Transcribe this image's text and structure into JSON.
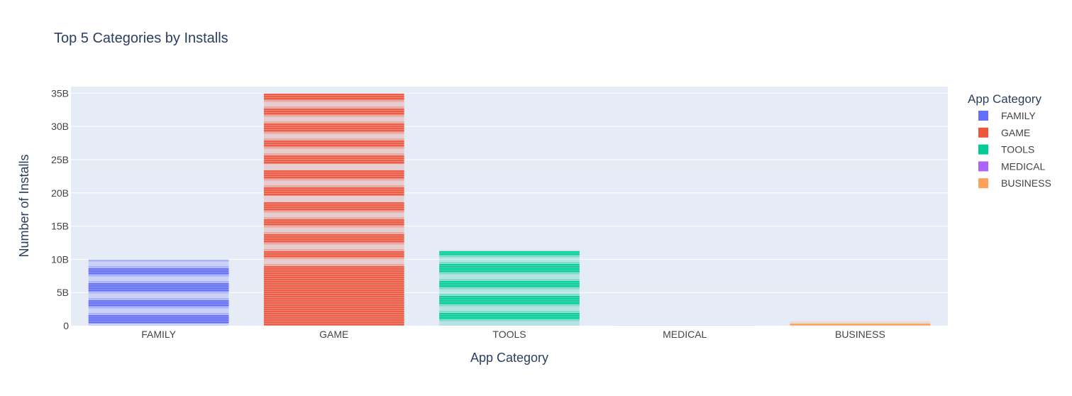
{
  "chart_data": {
    "type": "bar",
    "title": "Top 5 Categories by Installs",
    "xlabel": "App Category",
    "ylabel": "Number of Installs",
    "categories": [
      "FAMILY",
      "GAME",
      "TOOLS",
      "MEDICAL",
      "BUSINESS"
    ],
    "values": [
      10000000000,
      35000000000,
      11400000000,
      50000000,
      700000000
    ],
    "ylim": [
      0,
      36000000000
    ],
    "yticks": [
      0,
      5000000000,
      10000000000,
      15000000000,
      20000000000,
      25000000000,
      30000000000,
      35000000000
    ],
    "ytick_labels": [
      "0",
      "5B",
      "10B",
      "15B",
      "20B",
      "25B",
      "30B",
      "35B"
    ],
    "grid": true,
    "legend": {
      "title": "App Category",
      "placement": "right",
      "entries": [
        "FAMILY",
        "GAME",
        "TOOLS",
        "MEDICAL",
        "BUSINESS"
      ]
    },
    "colors": {
      "FAMILY": "#636efa",
      "GAME": "#ef553b",
      "TOOLS": "#00cc96",
      "MEDICAL": "#ab63fa",
      "BUSINESS": "#ffa15a",
      "plot_bg": "#e5ecf6"
    }
  }
}
